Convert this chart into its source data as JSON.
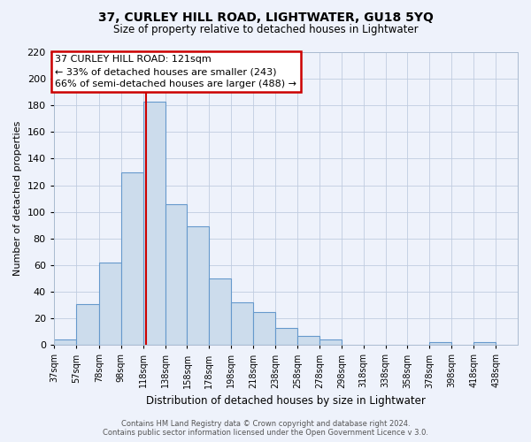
{
  "title": "37, CURLEY HILL ROAD, LIGHTWATER, GU18 5YQ",
  "subtitle": "Size of property relative to detached houses in Lightwater",
  "xlabel": "Distribution of detached houses by size in Lightwater",
  "ylabel": "Number of detached properties",
  "footer_lines": [
    "Contains HM Land Registry data © Crown copyright and database right 2024.",
    "Contains public sector information licensed under the Open Government Licence v 3.0."
  ],
  "bin_labels": [
    "37sqm",
    "57sqm",
    "78sqm",
    "98sqm",
    "118sqm",
    "138sqm",
    "158sqm",
    "178sqm",
    "198sqm",
    "218sqm",
    "238sqm",
    "258sqm",
    "278sqm",
    "298sqm",
    "318sqm",
    "338sqm",
    "358sqm",
    "378sqm",
    "398sqm",
    "418sqm",
    "438sqm"
  ],
  "bar_heights": [
    4,
    31,
    62,
    130,
    183,
    106,
    89,
    50,
    32,
    25,
    13,
    7,
    4,
    0,
    0,
    0,
    0,
    2,
    0,
    2,
    0
  ],
  "bar_color": "#ccdcec",
  "bar_edge_color": "#6699cc",
  "ylim": [
    0,
    220
  ],
  "yticks": [
    0,
    20,
    40,
    60,
    80,
    100,
    120,
    140,
    160,
    180,
    200,
    220
  ],
  "red_line_x": 121,
  "bin_edges": [
    37,
    57,
    78,
    98,
    118,
    138,
    158,
    178,
    198,
    218,
    238,
    258,
    278,
    298,
    318,
    338,
    358,
    378,
    398,
    418,
    438,
    458
  ],
  "annotation_title": "37 CURLEY HILL ROAD: 121sqm",
  "annotation_line1": "← 33% of detached houses are smaller (243)",
  "annotation_line2": "66% of semi-detached houses are larger (488) →",
  "annotation_box_color": "white",
  "annotation_box_edge": "#cc0000",
  "grid_color": "#c0cce0",
  "background_color": "#eef2fb"
}
